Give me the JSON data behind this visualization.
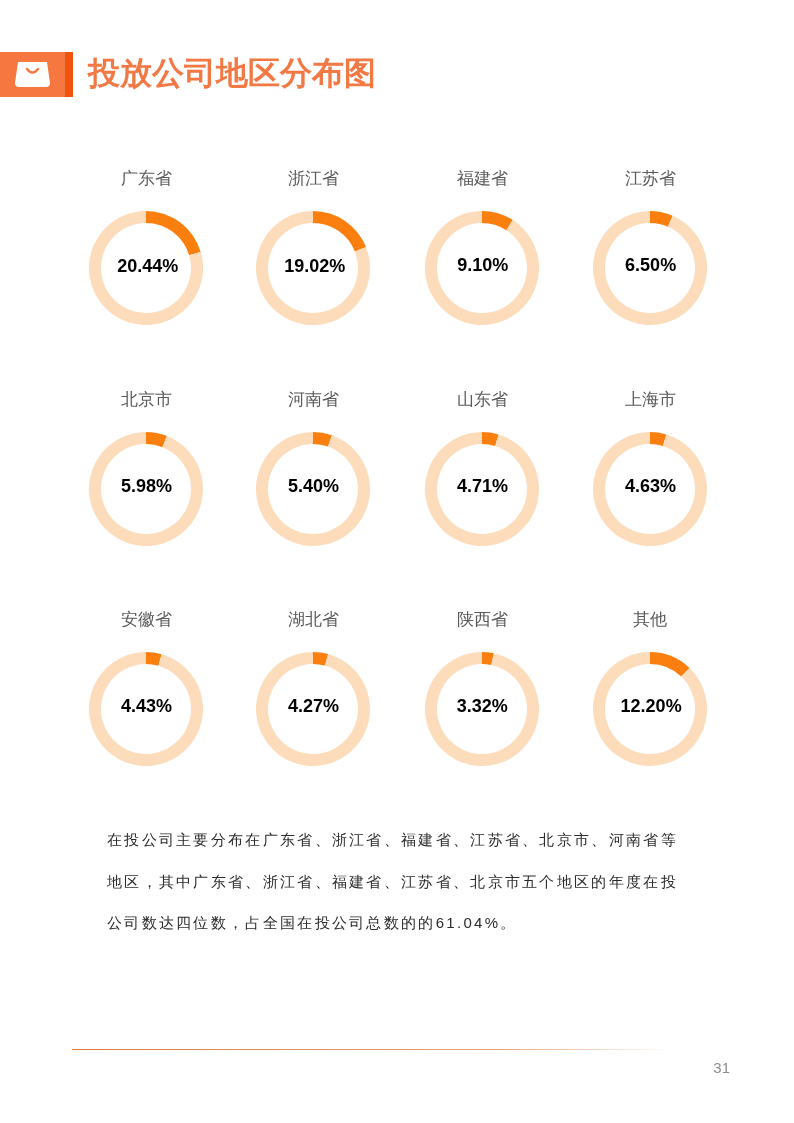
{
  "chart_data": [
    {
      "type": "other",
      "title": "投放公司地区分布图"
    },
    {
      "type": "donut",
      "title": "广东省",
      "categories": [
        null,
        null
      ],
      "values": [
        20.44,
        79.56
      ],
      "colors": [
        "#fb7f0e",
        "#fcdcba"
      ],
      "value_labels": [
        "20.44%",
        null
      ]
    },
    {
      "type": "donut",
      "title": "浙江省",
      "categories": [
        null,
        null
      ],
      "values": [
        19.02,
        80.98
      ],
      "colors": [
        "#fb7f0e",
        "#fcdcba"
      ],
      "value_labels": [
        "19.02%",
        null
      ]
    },
    {
      "type": "donut",
      "title": "福建省",
      "categories": [
        null,
        null
      ],
      "values": [
        9.1,
        90.9
      ],
      "colors": [
        "#fb7f0e",
        "#fcdcba"
      ],
      "value_labels": [
        "9.10%",
        null
      ]
    },
    {
      "type": "donut",
      "title": "江苏省",
      "categories": [
        null,
        null
      ],
      "values": [
        6.5,
        93.5
      ],
      "colors": [
        "#fb7f0e",
        "#fcdcba"
      ],
      "value_labels": [
        "6.50%",
        null
      ]
    },
    {
      "type": "donut",
      "title": "北京市",
      "categories": [
        null,
        null
      ],
      "values": [
        5.98,
        94.02
      ],
      "colors": [
        "#fb7f0e",
        "#fcdcba"
      ],
      "value_labels": [
        "5.98%",
        null
      ]
    },
    {
      "type": "donut",
      "title": "河南省",
      "categories": [
        null,
        null
      ],
      "values": [
        5.4,
        94.6
      ],
      "colors": [
        "#fb7f0e",
        "#fcdcba"
      ],
      "value_labels": [
        "5.40%",
        null
      ]
    },
    {
      "type": "donut",
      "title": "山东省",
      "categories": [
        null,
        null
      ],
      "values": [
        4.71,
        95.29
      ],
      "colors": [
        "#fb7f0e",
        "#fcdcba"
      ],
      "value_labels": [
        "4.71%",
        null
      ]
    },
    {
      "type": "donut",
      "title": "上海市",
      "categories": [
        null,
        null
      ],
      "values": [
        4.63,
        95.37
      ],
      "colors": [
        "#fb7f0e",
        "#fcdcba"
      ],
      "value_labels": [
        "4.63%",
        null
      ]
    },
    {
      "type": "donut",
      "title": "安徽省",
      "categories": [
        null,
        null
      ],
      "values": [
        4.43,
        95.57
      ],
      "colors": [
        "#fb7f0e",
        "#fcdcba"
      ],
      "value_labels": [
        "4.43%",
        null
      ]
    },
    {
      "type": "donut",
      "title": "湖北省",
      "categories": [
        null,
        null
      ],
      "values": [
        4.27,
        95.73
      ],
      "colors": [
        "#fb7f0e",
        "#fcdcba"
      ],
      "value_labels": [
        "4.27%",
        null
      ]
    },
    {
      "type": "donut",
      "title": "陕西省",
      "categories": [
        null,
        null
      ],
      "values": [
        3.32,
        96.68
      ],
      "colors": [
        "#fb7f0e",
        "#fcdcba"
      ],
      "value_labels": [
        "3.32%",
        null
      ]
    },
    {
      "type": "donut",
      "title": "其他",
      "categories": [
        null,
        null
      ],
      "values": [
        12.2,
        87.8
      ],
      "colors": [
        "#fb7f0e",
        "#fcdcba"
      ],
      "value_labels": [
        "12.20%",
        null
      ]
    },
    {
      "type": "other",
      "annotations": [
        "在投公司主要分布在广东省、浙江省、福建省、江苏省、北京市、河南省等地区，其中广东省、浙江省、福建省、江苏省、北京市五个地区的年度在投公司数达四位数，占全国在投公司总数的的61.04%。",
        "31"
      ]
    }
  ]
}
